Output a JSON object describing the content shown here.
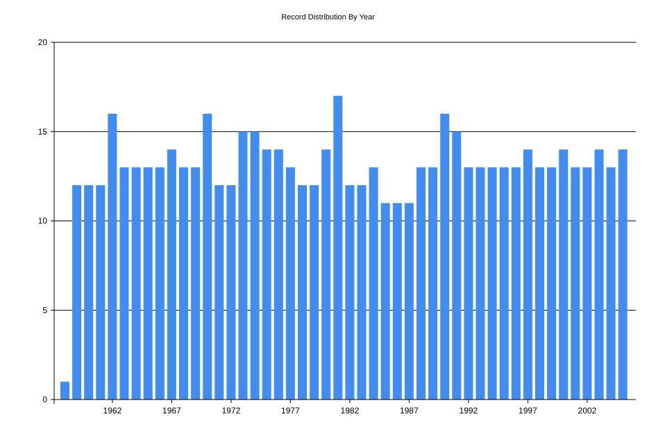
{
  "chart_data": {
    "type": "bar",
    "title": "Record Distribution By Year",
    "xlabel": "",
    "ylabel": "",
    "ylim": [
      0,
      20
    ],
    "yticks": [
      0,
      5,
      10,
      15,
      20
    ],
    "xtick_labels": [
      "1962",
      "1967",
      "1972",
      "1977",
      "1982",
      "1987",
      "1992",
      "1997",
      "2002"
    ],
    "grid": "horizontal",
    "legend": "none",
    "bar_color": "#418cf0",
    "categories": [
      "1958",
      "1959",
      "1960",
      "1961",
      "1962",
      "1963",
      "1964",
      "1965",
      "1966",
      "1967",
      "1968",
      "1969",
      "1970",
      "1971",
      "1972",
      "1973",
      "1974",
      "1975",
      "1976",
      "1977",
      "1978",
      "1979",
      "1980",
      "1981",
      "1982",
      "1983",
      "1984",
      "1985",
      "1986",
      "1987",
      "1988",
      "1989",
      "1990",
      "1991",
      "1992",
      "1993",
      "1994",
      "1995",
      "1996",
      "1997",
      "1998",
      "1999",
      "2000",
      "2001",
      "2002",
      "2003",
      "2004",
      "2005"
    ],
    "values": [
      1,
      12,
      12,
      12,
      16,
      13,
      13,
      13,
      13,
      14,
      13,
      13,
      16,
      12,
      12,
      15,
      15,
      14,
      14,
      13,
      12,
      12,
      14,
      17,
      12,
      12,
      13,
      11,
      11,
      11,
      13,
      13,
      16,
      15,
      13,
      13,
      13,
      13,
      13,
      14,
      13,
      13,
      14,
      13,
      13,
      14,
      13,
      14
    ]
  }
}
